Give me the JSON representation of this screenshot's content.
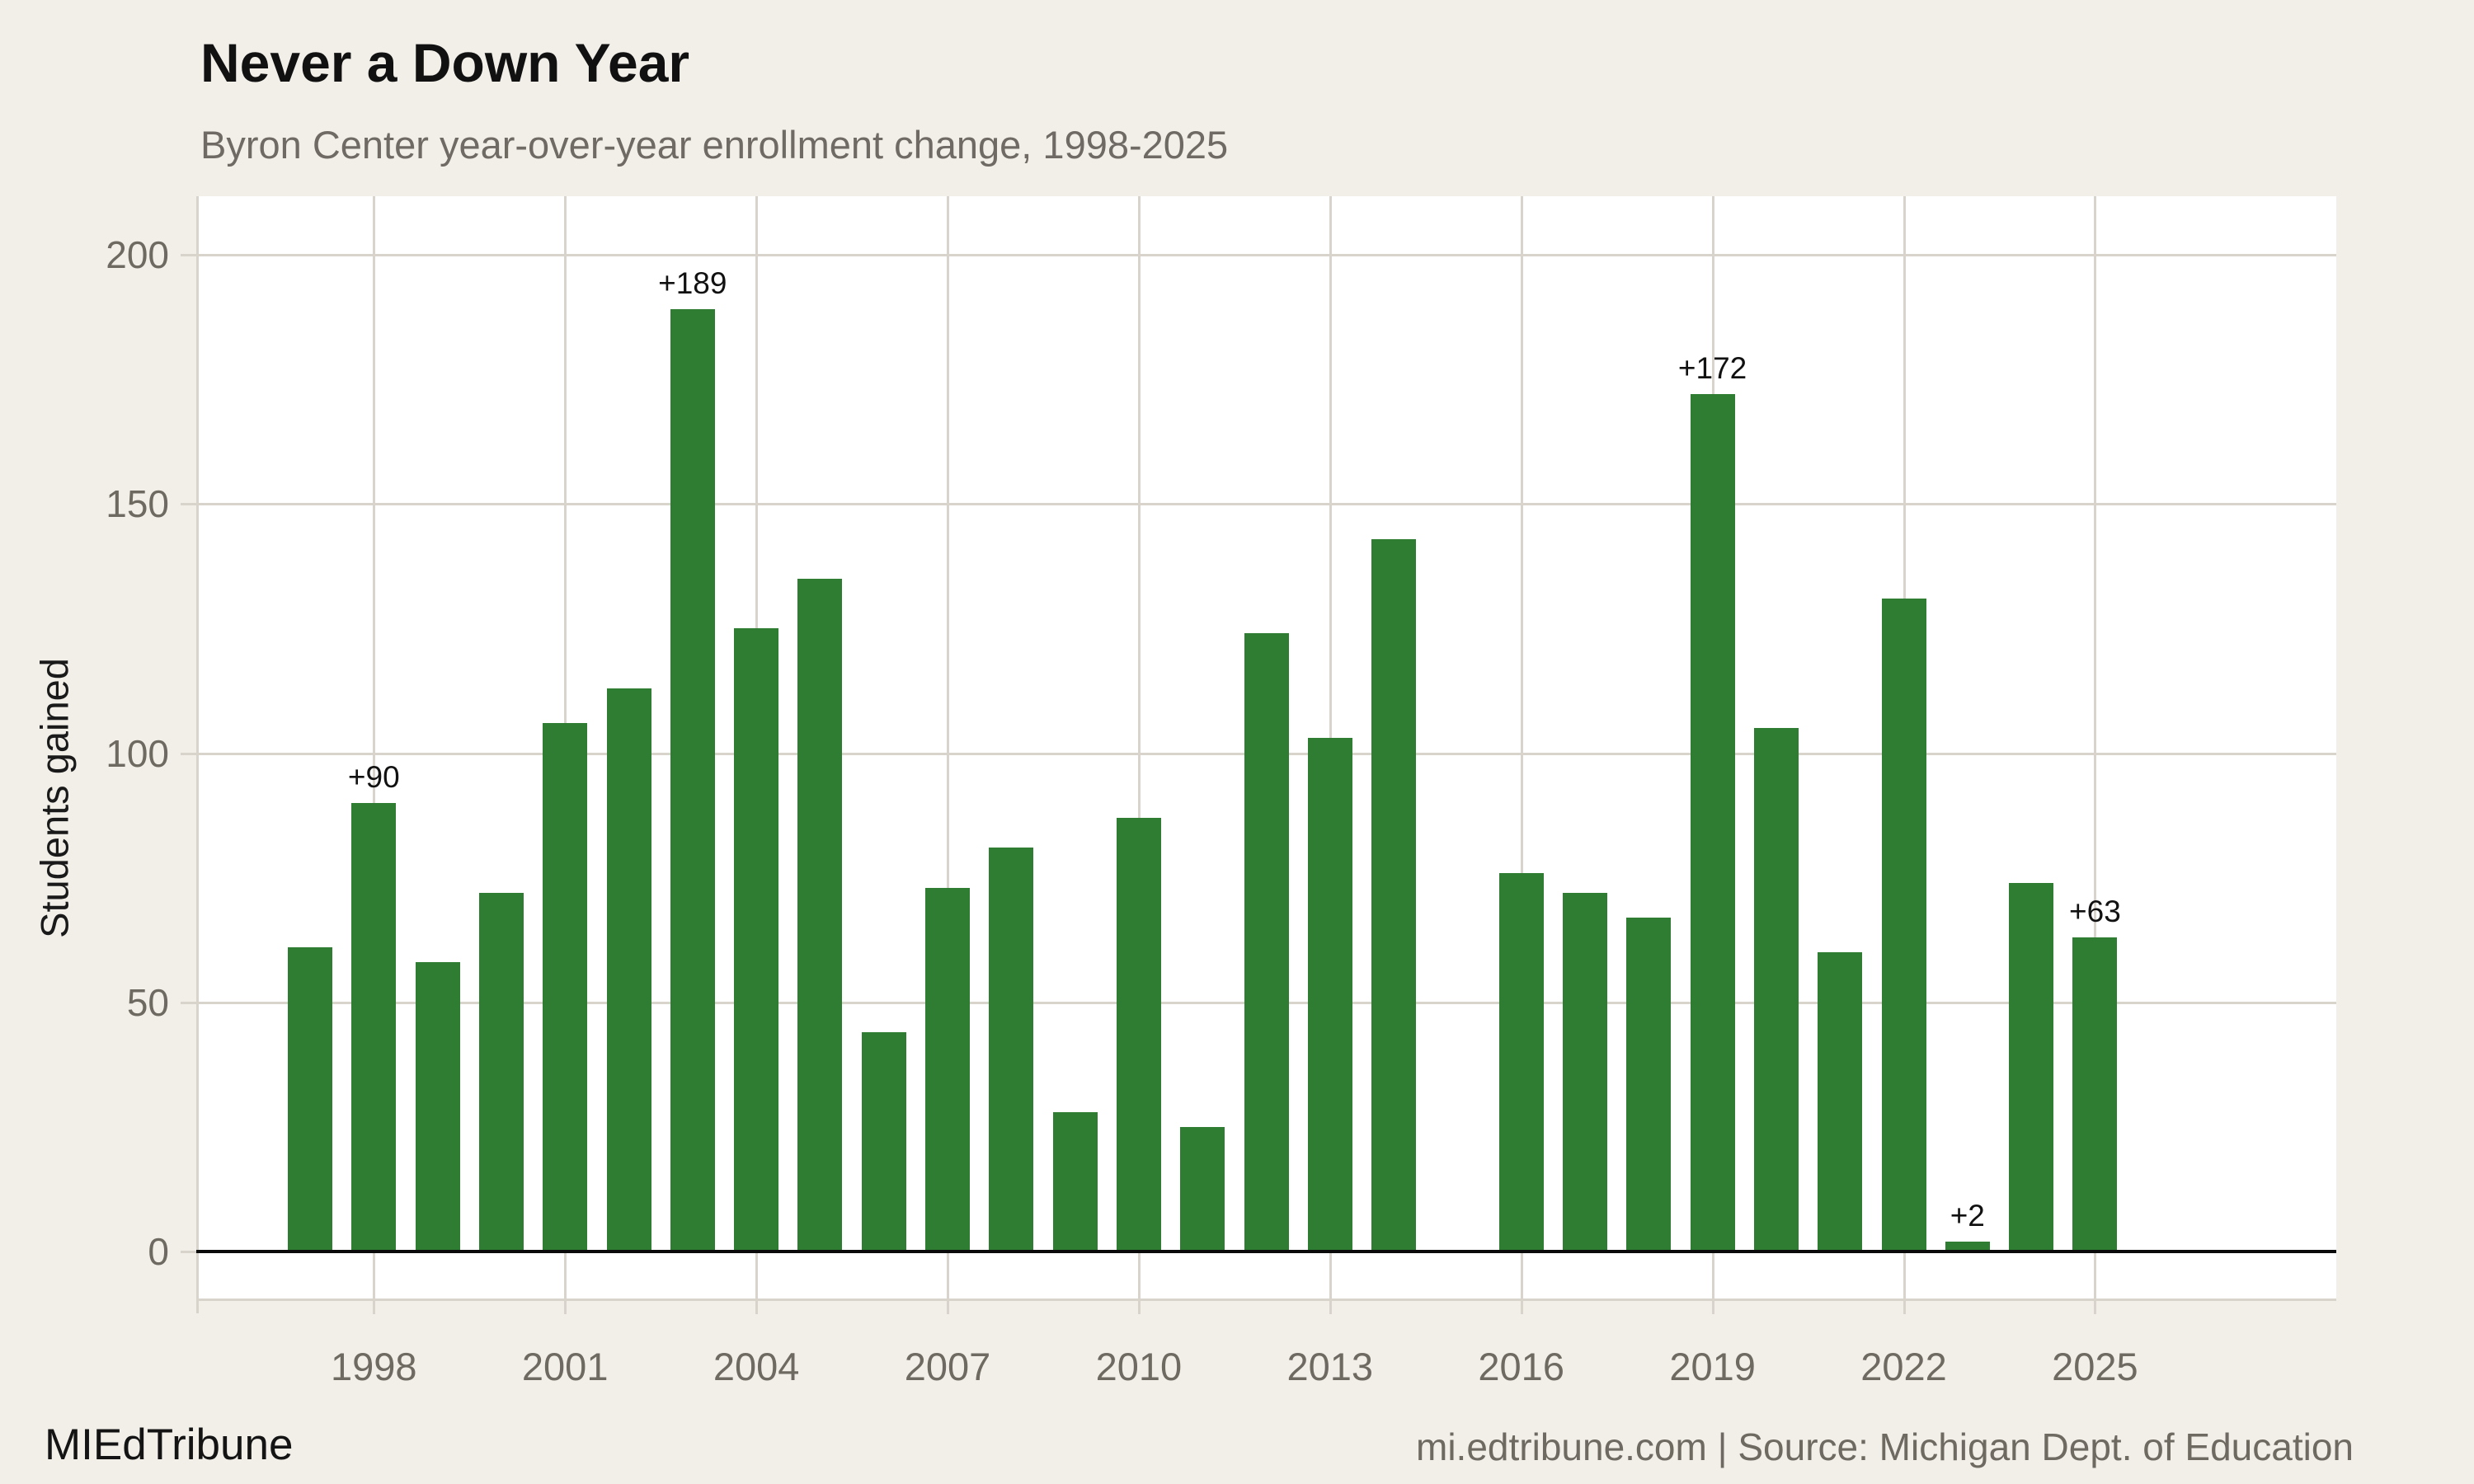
{
  "header": {
    "title": "Never a Down Year",
    "subtitle": "Byron Center year-over-year enrollment change, 1998-2025"
  },
  "footer": {
    "brand": "MIEdTribune",
    "source": "mi.edtribune.com | Source: Michigan Dept. of Education"
  },
  "colors": {
    "background": "#f2efe9",
    "panel": "#ffffff",
    "bar": "#2f7d33",
    "gridline": "#d8d4cb",
    "zero_line": "#0a0a0a",
    "muted_text": "#6e6a62",
    "dark_text": "#111111"
  },
  "chart_data": {
    "type": "bar",
    "title": "Never a Down Year",
    "subtitle": "Byron Center year-over-year enrollment change, 1998-2025",
    "xlabel": "",
    "ylabel": "Students gained",
    "ylim": [
      0,
      210
    ],
    "yticks": [
      0,
      50,
      100,
      150,
      200
    ],
    "xticks": [
      "1998",
      "2001",
      "2004",
      "2007",
      "2010",
      "2013",
      "2016",
      "2019",
      "2022",
      "2025"
    ],
    "grid": true,
    "legend": false,
    "categories": [
      "1997",
      "1998",
      "1999",
      "2000",
      "2001",
      "2002",
      "2003",
      "2004",
      "2005",
      "2006",
      "2007",
      "2008",
      "2009",
      "2010",
      "2011",
      "2012",
      "2013",
      "2014",
      "2015",
      "2016",
      "2017",
      "2018",
      "2019",
      "2020",
      "2021",
      "2022",
      "2023",
      "2024",
      "2025"
    ],
    "values": [
      61,
      90,
      58,
      72,
      106,
      113,
      189,
      125,
      135,
      44,
      73,
      81,
      28,
      87,
      25,
      124,
      103,
      143,
      null,
      76,
      72,
      67,
      172,
      105,
      60,
      131,
      2,
      74,
      63
    ],
    "bar_labels": {
      "1998": "+90",
      "2003": "+189",
      "2019": "+172",
      "2023": "+2",
      "2025": "+63"
    }
  }
}
